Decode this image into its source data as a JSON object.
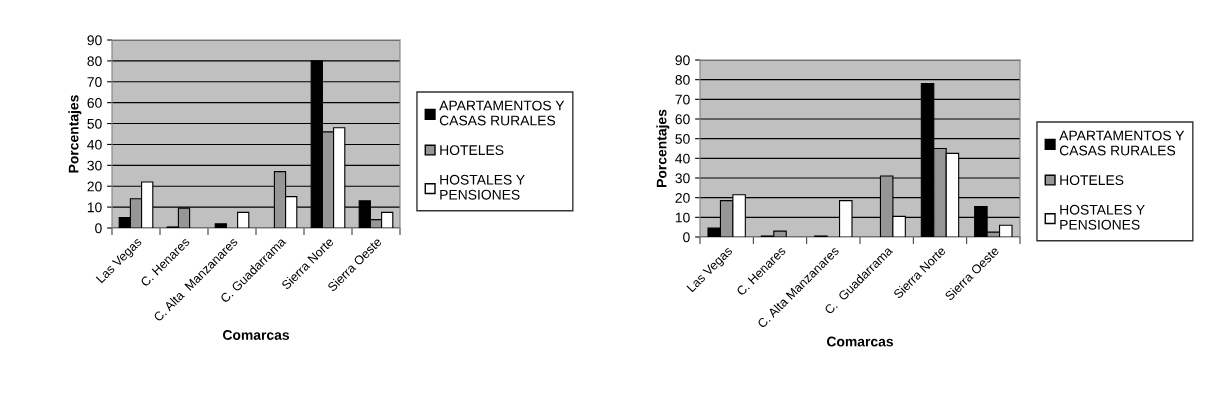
{
  "chart_data": [
    {
      "type": "bar",
      "xlabel": "Comarcas",
      "ylabel": "Porcentajes",
      "categories": [
        "Las Vegas",
        "C. Henares",
        "C. Alta  Manzanares",
        "C. Guadarrama",
        "Sierra Norte",
        "Sierra Oeste"
      ],
      "series": [
        {
          "name": "APARTAMENTOS Y\nCASAS RURALES",
          "color": "#000000",
          "values": [
            5,
            0.5,
            2,
            null,
            80,
            13
          ]
        },
        {
          "name": "HOTELES",
          "color": "#969696",
          "values": [
            14,
            9.5,
            null,
            27,
            46,
            4
          ]
        },
        {
          "name": "HOSTALES Y\nPENSIONES",
          "color": "#ffffff",
          "values": [
            22,
            null,
            7.5,
            15,
            48,
            7.5
          ]
        }
      ],
      "ylim": [
        0,
        90
      ],
      "yticks": [
        0,
        10,
        20,
        30,
        40,
        50,
        60,
        70,
        80,
        90
      ],
      "grid": "y",
      "legend": "right"
    },
    {
      "type": "bar",
      "xlabel": "Comarcas",
      "ylabel": "Porcentajes",
      "categories": [
        "Las Vegas",
        "C. Henares",
        "C. Alta Manzanares",
        "C.  Guadarrama",
        "Sierra Norte",
        "Sierra Oeste"
      ],
      "series": [
        {
          "name": "APARTAMENTOS Y\nCASAS RURALES",
          "color": "#000000",
          "values": [
            4.5,
            0.5,
            0.5,
            null,
            78,
            15.5
          ]
        },
        {
          "name": "HOTELES",
          "color": "#969696",
          "values": [
            18.5,
            3,
            null,
            31,
            45,
            2.5
          ]
        },
        {
          "name": "HOSTALES Y\nPENSIONES",
          "color": "#ffffff",
          "values": [
            21.5,
            null,
            18.5,
            10.5,
            42.5,
            6
          ]
        }
      ],
      "ylim": [
        0,
        90
      ],
      "yticks": [
        0,
        10,
        20,
        30,
        40,
        50,
        60,
        70,
        80,
        90
      ],
      "grid": "y",
      "legend": "right"
    }
  ]
}
